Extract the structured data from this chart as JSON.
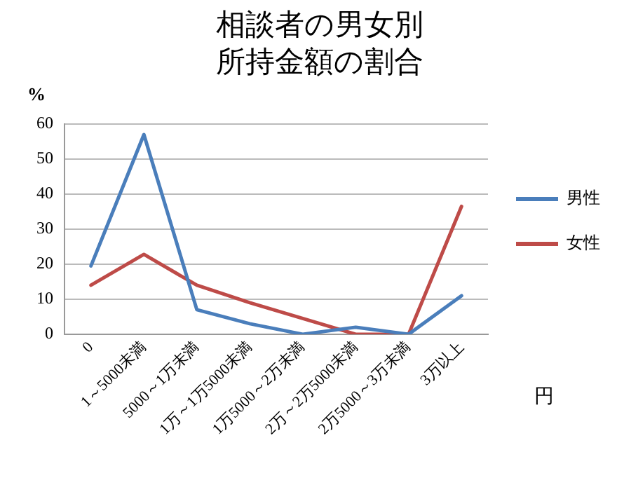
{
  "chart_data": {
    "type": "line",
    "title": "相談者の男女別所持金額の割合",
    "xlabel": "円",
    "ylabel": "%",
    "categories": [
      "0",
      "1～5000未満",
      "5000～1万未満",
      "1万～1万5000未満",
      "1万5000～2万未満",
      "2万～2万5000未満",
      "2万5000～3万未満",
      "3万以上"
    ],
    "series": [
      {
        "name": "男性",
        "color": "#4a7ebb",
        "values": [
          19.5,
          57,
          7,
          3,
          0,
          2,
          0,
          11
        ]
      },
      {
        "name": "女性",
        "color": "#be4b48",
        "values": [
          14,
          22.8,
          14,
          9,
          4.5,
          0,
          0,
          36.5
        ]
      }
    ],
    "ylim": [
      0,
      60
    ],
    "yticks": [
      0,
      10,
      20,
      30,
      40,
      50,
      60
    ],
    "grid": "y",
    "legend": "right",
    "marker": "none",
    "line_style": "solid"
  }
}
